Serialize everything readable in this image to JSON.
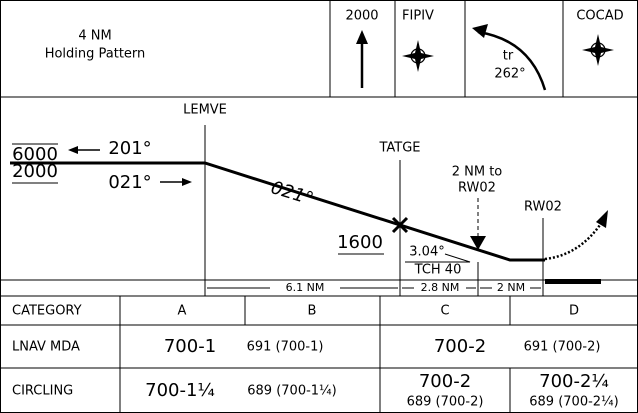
{
  "header": {
    "holding": [
      "4 NM",
      "Holding Pattern"
    ],
    "boxes": [
      {
        "label": "2000"
      },
      {
        "label": "FIPIV"
      },
      {
        "lines": [
          "tr",
          "262°"
        ]
      },
      {
        "label": "COCAD"
      }
    ]
  },
  "profile": {
    "altitudes": [
      "6000",
      "2000"
    ],
    "courses": [
      "201°",
      "021°",
      "021°"
    ],
    "fixes": [
      "LEMVE",
      "TATGE",
      "RW02"
    ],
    "fix_altitude": "1600",
    "glide_angle": "3.04°",
    "tch": "TCH 40",
    "note": [
      "2 NM to",
      "RW02"
    ],
    "distances": [
      "6.1 NM",
      "2.8 NM",
      "2 NM"
    ]
  },
  "table": {
    "header": [
      "CATEGORY",
      "A",
      "B",
      "C",
      "D"
    ],
    "lnav": [
      "LNAV MDA",
      "700-1",
      "691 (700-1)",
      "700-2",
      "691 (700-2)"
    ],
    "circling": [
      "CIRCLING",
      "700-1¼",
      "689 (700-1¼)",
      "700-2",
      "689 (700-2)",
      "700-2¼",
      "689 (700-2¼)"
    ]
  }
}
